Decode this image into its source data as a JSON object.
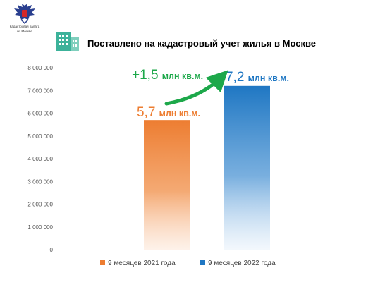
{
  "header": {
    "org_name_line1": "Кадастровая палата",
    "org_name_line2": "по Москве",
    "logo_icon": "double-headed-eagle-emblem-icon",
    "building_icon": "building-icon"
  },
  "chart_data": {
    "type": "bar",
    "title": "Поставлено на кадастровый учет жилья в Москве",
    "categories": [
      "9 месяцев 2021 года",
      "9 месяцев 2022 года"
    ],
    "values": [
      5700000,
      7200000
    ],
    "ylim": [
      0,
      8000000
    ],
    "yticks": [
      "0",
      "1 000 000",
      "2 000 000",
      "3 000 000",
      "4 000 000",
      "5 000 000",
      "6 000 000",
      "7 000 000",
      "8 000 000"
    ],
    "legend_position": "bottom",
    "colors": [
      "#ED7D31",
      "#1F77C3"
    ],
    "data_labels": [
      {
        "value": "5,7",
        "unit": "млн кв.м."
      },
      {
        "value": "7,2",
        "unit": "млн кв.м."
      }
    ],
    "change_annotation": {
      "value": "+1,5",
      "unit": "млн кв.м.",
      "color": "#1DA84A"
    }
  }
}
